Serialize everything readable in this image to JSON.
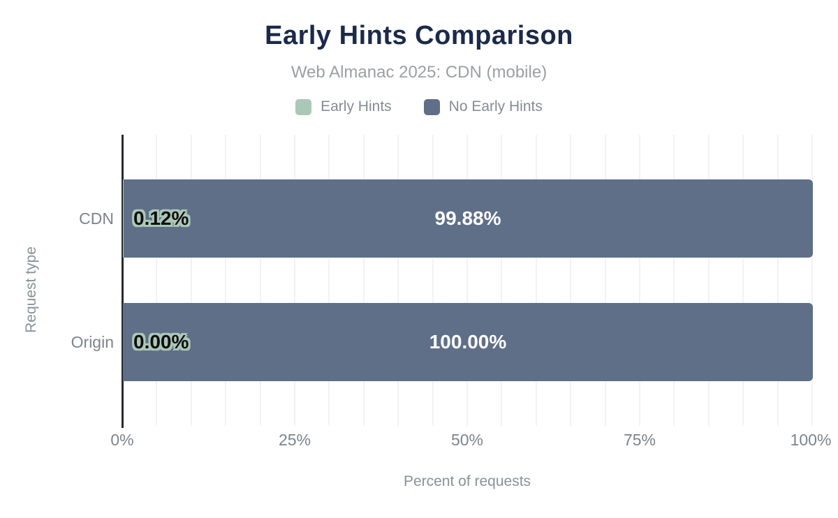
{
  "title": "Early Hints Comparison",
  "subtitle": "Web Almanac 2025: CDN (mobile)",
  "legend": {
    "items": [
      {
        "label": "Early Hints",
        "color": "#abc7b8"
      },
      {
        "label": "No Early Hints",
        "color": "#5f6f88"
      }
    ]
  },
  "chart_data": {
    "type": "bar",
    "orientation": "horizontal",
    "stacked": true,
    "title": "Early Hints Comparison",
    "subtitle": "Web Almanac 2025: CDN (mobile)",
    "categories": [
      "CDN",
      "Origin"
    ],
    "series": [
      {
        "name": "Early Hints",
        "color": "#abc7b8",
        "values": [
          0.12,
          0.0
        ],
        "labels": [
          "0.12%",
          "0.00%"
        ]
      },
      {
        "name": "No Early Hints",
        "color": "#5f6f88",
        "values": [
          99.88,
          100.0
        ],
        "labels": [
          "99.88%",
          "100.00%"
        ]
      }
    ],
    "xlabel": "Percent of requests",
    "ylabel": "Request type",
    "xlim": [
      0,
      100
    ],
    "xticks": [
      "0%",
      "25%",
      "50%",
      "75%",
      "100%"
    ],
    "xtick_positions": [
      0,
      25,
      50,
      75,
      100
    ],
    "grid": {
      "vertical_minor_step_percent": 5,
      "color": "#f1f2f2"
    },
    "legend_position": "top"
  },
  "colors": {
    "title": "#1b2a4a",
    "subtitle": "#9c9fa2",
    "axis_line": "#26292d",
    "labels": "#7c848b",
    "bar_value_light": "#ffffff",
    "bar_value_dark": "#0e0e0e"
  }
}
